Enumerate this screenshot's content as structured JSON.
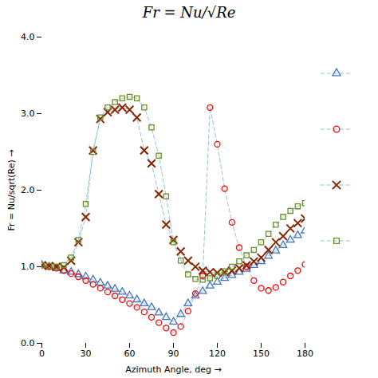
{
  "chart_data": {
    "type": "line",
    "title": "Fr = Nu/√Re",
    "x_label": "Azimuth Angle, deg",
    "y_label": "Fr = Nu/sqrt(Re)",
    "xlim": [
      0,
      180
    ],
    "ylim": [
      0,
      4
    ],
    "xticks": [
      0,
      30,
      60,
      90,
      120,
      150,
      180
    ],
    "yticks": [
      0,
      1,
      2,
      3,
      4
    ],
    "grid": false,
    "legend": "right",
    "color": "#93C6D6",
    "line_style": "dashed",
    "x": [
      0,
      5,
      10,
      15,
      20,
      25,
      30,
      35,
      40,
      45,
      50,
      55,
      60,
      65,
      70,
      75,
      80,
      85,
      90,
      95,
      100,
      105,
      110,
      115,
      120,
      125,
      130,
      135,
      140,
      145,
      150,
      155,
      160,
      165,
      170,
      175,
      180
    ],
    "series": [
      {
        "color": "#4472C4",
        "marker": "triangle",
        "values": [
          1.02,
          1.0,
          0.98,
          0.95,
          0.93,
          0.9,
          0.87,
          0.83,
          0.79,
          0.75,
          0.71,
          0.67,
          0.62,
          0.57,
          0.52,
          0.47,
          0.4,
          0.34,
          0.28,
          0.38,
          0.52,
          0.62,
          0.68,
          0.75,
          0.8,
          0.85,
          0.89,
          0.93,
          0.97,
          1.02,
          1.07,
          1.14,
          1.21,
          1.28,
          1.35,
          1.41,
          1.47
        ]
      },
      {
        "color": "#FF0000",
        "marker": "circle",
        "values": [
          1.02,
          1.0,
          0.98,
          0.95,
          0.91,
          0.87,
          0.82,
          0.77,
          0.72,
          0.67,
          0.62,
          0.57,
          0.52,
          0.47,
          0.41,
          0.34,
          0.27,
          0.2,
          0.14,
          0.22,
          0.42,
          0.65,
          0.88,
          3.08,
          2.6,
          2.02,
          1.58,
          1.25,
          1.0,
          0.82,
          0.72,
          0.69,
          0.73,
          0.8,
          0.88,
          0.95,
          1.03
        ]
      },
      {
        "color": "#8B2500",
        "marker": "x",
        "values": [
          1.02,
          1.01,
          1.0,
          0.99,
          1.08,
          1.32,
          1.65,
          2.52,
          2.93,
          3.02,
          3.05,
          3.08,
          3.05,
          2.95,
          2.52,
          2.35,
          1.95,
          1.55,
          1.35,
          1.2,
          1.08,
          1.0,
          0.95,
          0.93,
          0.92,
          0.93,
          0.95,
          0.98,
          1.02,
          1.07,
          1.12,
          1.22,
          1.32,
          1.4,
          1.5,
          1.57,
          1.63
        ]
      },
      {
        "color": "#6B8E23",
        "marker": "square",
        "values": [
          1.02,
          1.01,
          1.0,
          1.02,
          1.12,
          1.35,
          1.82,
          2.5,
          2.95,
          3.08,
          3.15,
          3.2,
          3.22,
          3.2,
          3.08,
          2.82,
          2.45,
          1.92,
          1.32,
          1.08,
          0.9,
          0.84,
          0.83,
          0.85,
          0.88,
          0.94,
          1.0,
          1.07,
          1.15,
          1.22,
          1.32,
          1.43,
          1.55,
          1.65,
          1.73,
          1.79,
          1.83
        ]
      }
    ]
  }
}
